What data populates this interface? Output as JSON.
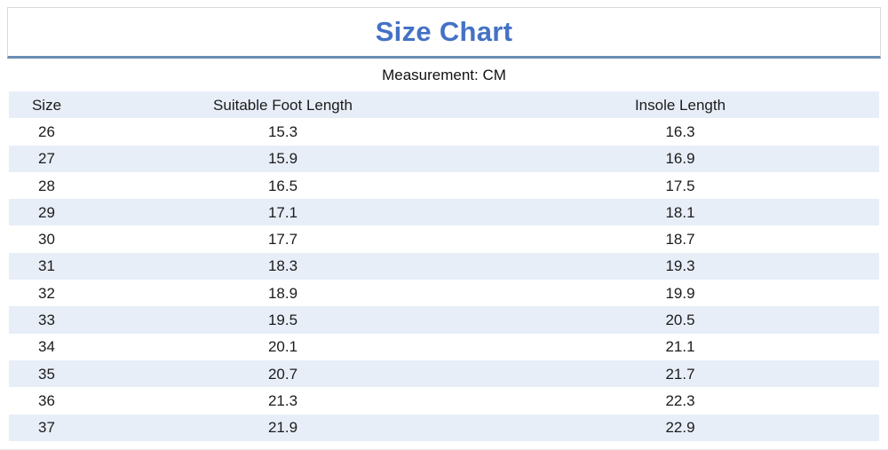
{
  "page": {
    "title": "Size Chart",
    "measurement_label": "Measurement: CM"
  },
  "colors": {
    "title_blue": "#4472C4",
    "divider_blue": "#6B8CB3",
    "banner_border_gray": "#D9D9D9",
    "row_alt_bg": "#E8EEF8",
    "text": "#1B1B1B"
  },
  "chart_data": {
    "type": "table",
    "title": "Size Chart",
    "subtitle": "Measurement: CM",
    "unit": "CM",
    "columns": [
      "Size",
      "Suitable Foot Length",
      "Insole Length"
    ],
    "rows": [
      [
        "26",
        "15.3",
        "16.3"
      ],
      [
        "27",
        "15.9",
        "16.9"
      ],
      [
        "28",
        "16.5",
        "17.5"
      ],
      [
        "29",
        "17.1",
        "18.1"
      ],
      [
        "30",
        "17.7",
        "18.7"
      ],
      [
        "31",
        "18.3",
        "19.3"
      ],
      [
        "32",
        "18.9",
        "19.9"
      ],
      [
        "33",
        "19.5",
        "20.5"
      ],
      [
        "34",
        "20.1",
        "21.1"
      ],
      [
        "35",
        "20.7",
        "21.7"
      ],
      [
        "36",
        "21.3",
        "22.3"
      ],
      [
        "37",
        "21.9",
        "22.9"
      ]
    ],
    "layout": {
      "header_background": "#E8EEF8",
      "zebra_striping": true,
      "first_data_row_background": "#FFFFFF"
    }
  }
}
